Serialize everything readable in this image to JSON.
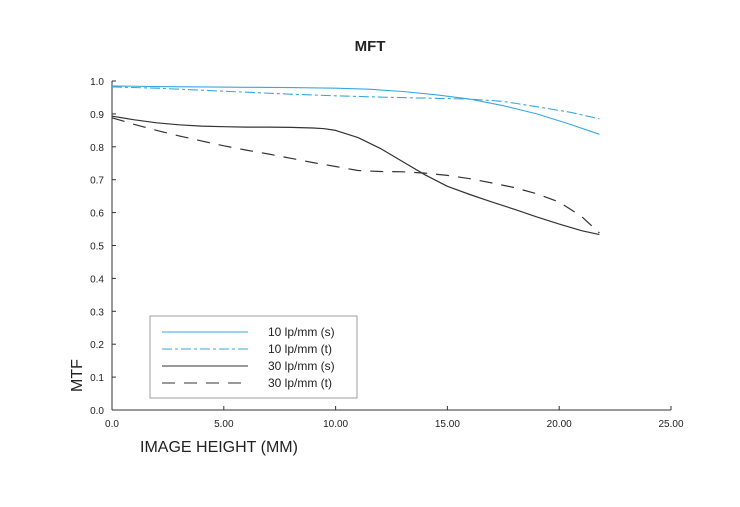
{
  "chart_data": {
    "type": "line",
    "title": "MFT",
    "xlabel": "IMAGE HEIGHT (MM)",
    "ylabel": "MTF",
    "xlim": [
      0,
      25
    ],
    "ylim": [
      0,
      1.0
    ],
    "x_ticks": [
      0,
      5,
      10,
      15,
      20,
      25
    ],
    "x_tick_labels": [
      "0.0",
      "5.00",
      "10.00",
      "15.00",
      "20.00",
      "25.00"
    ],
    "y_ticks": [
      0,
      0.1,
      0.2,
      0.3,
      0.4,
      0.5,
      0.6,
      0.7,
      0.8,
      0.9,
      1.0
    ],
    "y_tick_labels": [
      "0.0",
      "0.1",
      "0.2",
      "0.3",
      "0.4",
      "0.5",
      "0.6",
      "0.7",
      "0.8",
      "0.9",
      "1.0"
    ],
    "grid": false,
    "legend_position": "bottom-left",
    "series": [
      {
        "name": "10 lp/mm (s)",
        "color": "#3aa8e0",
        "dash": "solid",
        "x": [
          0,
          2,
          4,
          6,
          8,
          10,
          11.5,
          13,
          14.5,
          16,
          17.5,
          19,
          20.5,
          21.8
        ],
        "y": [
          0.985,
          0.983,
          0.982,
          0.981,
          0.98,
          0.978,
          0.975,
          0.968,
          0.958,
          0.945,
          0.925,
          0.9,
          0.868,
          0.838
        ]
      },
      {
        "name": "10 lp/mm (t)",
        "color": "#3aa8e0",
        "dash": "dashed",
        "x": [
          0,
          2,
          4,
          6,
          8,
          10,
          12,
          14,
          16,
          17.5,
          19,
          20.5,
          21.8
        ],
        "y": [
          0.982,
          0.978,
          0.972,
          0.966,
          0.96,
          0.955,
          0.951,
          0.948,
          0.945,
          0.938,
          0.922,
          0.905,
          0.885
        ]
      },
      {
        "name": "30 lp/mm (s)",
        "color": "#333333",
        "dash": "solid",
        "x": [
          0,
          1,
          2,
          3,
          4,
          5,
          6,
          7,
          8,
          9,
          9.5,
          10,
          11,
          12,
          13,
          14,
          15,
          16,
          17,
          18,
          19,
          20,
          21,
          21.8
        ],
        "y": [
          0.893,
          0.882,
          0.873,
          0.867,
          0.863,
          0.861,
          0.86,
          0.86,
          0.859,
          0.857,
          0.855,
          0.85,
          0.828,
          0.795,
          0.755,
          0.715,
          0.68,
          0.655,
          0.632,
          0.61,
          0.587,
          0.565,
          0.545,
          0.533
        ]
      },
      {
        "name": "30 lp/mm (t)",
        "color": "#333333",
        "dash": "longdash",
        "x": [
          0,
          1,
          2,
          3,
          4,
          5,
          6,
          7,
          8,
          9,
          10,
          11,
          12,
          13,
          14,
          15,
          16,
          17,
          18,
          19,
          20,
          21,
          21.8
        ],
        "y": [
          0.888,
          0.868,
          0.85,
          0.833,
          0.818,
          0.803,
          0.79,
          0.778,
          0.765,
          0.752,
          0.74,
          0.728,
          0.725,
          0.724,
          0.72,
          0.713,
          0.703,
          0.69,
          0.676,
          0.657,
          0.632,
          0.588,
          0.538
        ]
      }
    ]
  }
}
